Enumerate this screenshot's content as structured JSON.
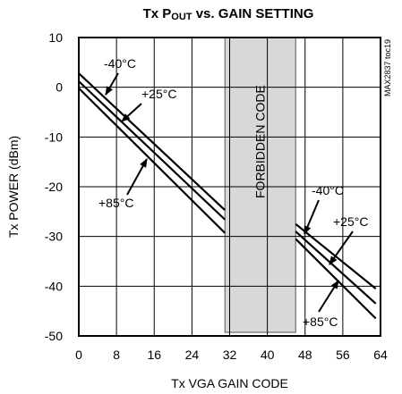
{
  "chart_data": {
    "type": "line",
    "title_main": "Tx P",
    "title_sub": "OUT",
    "title_rest": " vs. GAIN SETTING",
    "xlabel": "Tx VGA GAIN CODE",
    "ylabel": "Tx POWER (dBm)",
    "xlim": [
      0,
      64
    ],
    "ylim": [
      -50,
      10
    ],
    "xticks": [
      0,
      8,
      16,
      24,
      32,
      40,
      48,
      56,
      64
    ],
    "yticks": [
      10,
      0,
      -10,
      -20,
      -30,
      -40,
      -50
    ],
    "grid": true,
    "code_label": "MAX2837 toc19",
    "forbidden_region": {
      "x": [
        31,
        46
      ],
      "label": "FORBIDDEN CODE"
    },
    "series": [
      {
        "name": "-40°C",
        "segments": [
          {
            "x": [
              0,
              31
            ],
            "y": [
              2.8,
              -24.7
            ]
          },
          {
            "x": [
              46,
              63
            ],
            "y": [
              -27.5,
              -40.5
            ]
          }
        ]
      },
      {
        "name": "+25°C",
        "segments": [
          {
            "x": [
              0,
              31
            ],
            "y": [
              1.2,
              -26.6
            ]
          },
          {
            "x": [
              46,
              63
            ],
            "y": [
              -29.0,
              -43.5
            ]
          }
        ]
      },
      {
        "name": "+85°C",
        "segments": [
          {
            "x": [
              0,
              31
            ],
            "y": [
              -0.2,
              -29.3
            ]
          },
          {
            "x": [
              46,
              63
            ],
            "y": [
              -30.5,
              -46.5
            ]
          }
        ]
      }
    ],
    "annotations": [
      {
        "text": "-40°C",
        "series": "-40°C",
        "group": "left"
      },
      {
        "text": "+25°C",
        "series": "+25°C",
        "group": "left"
      },
      {
        "text": "+85°C",
        "series": "+85°C",
        "group": "left"
      },
      {
        "text": "-40°C",
        "series": "-40°C",
        "group": "right"
      },
      {
        "text": "+25°C",
        "series": "+25°C",
        "group": "right"
      },
      {
        "text": "+85°C",
        "series": "+85°C",
        "group": "right"
      }
    ]
  }
}
